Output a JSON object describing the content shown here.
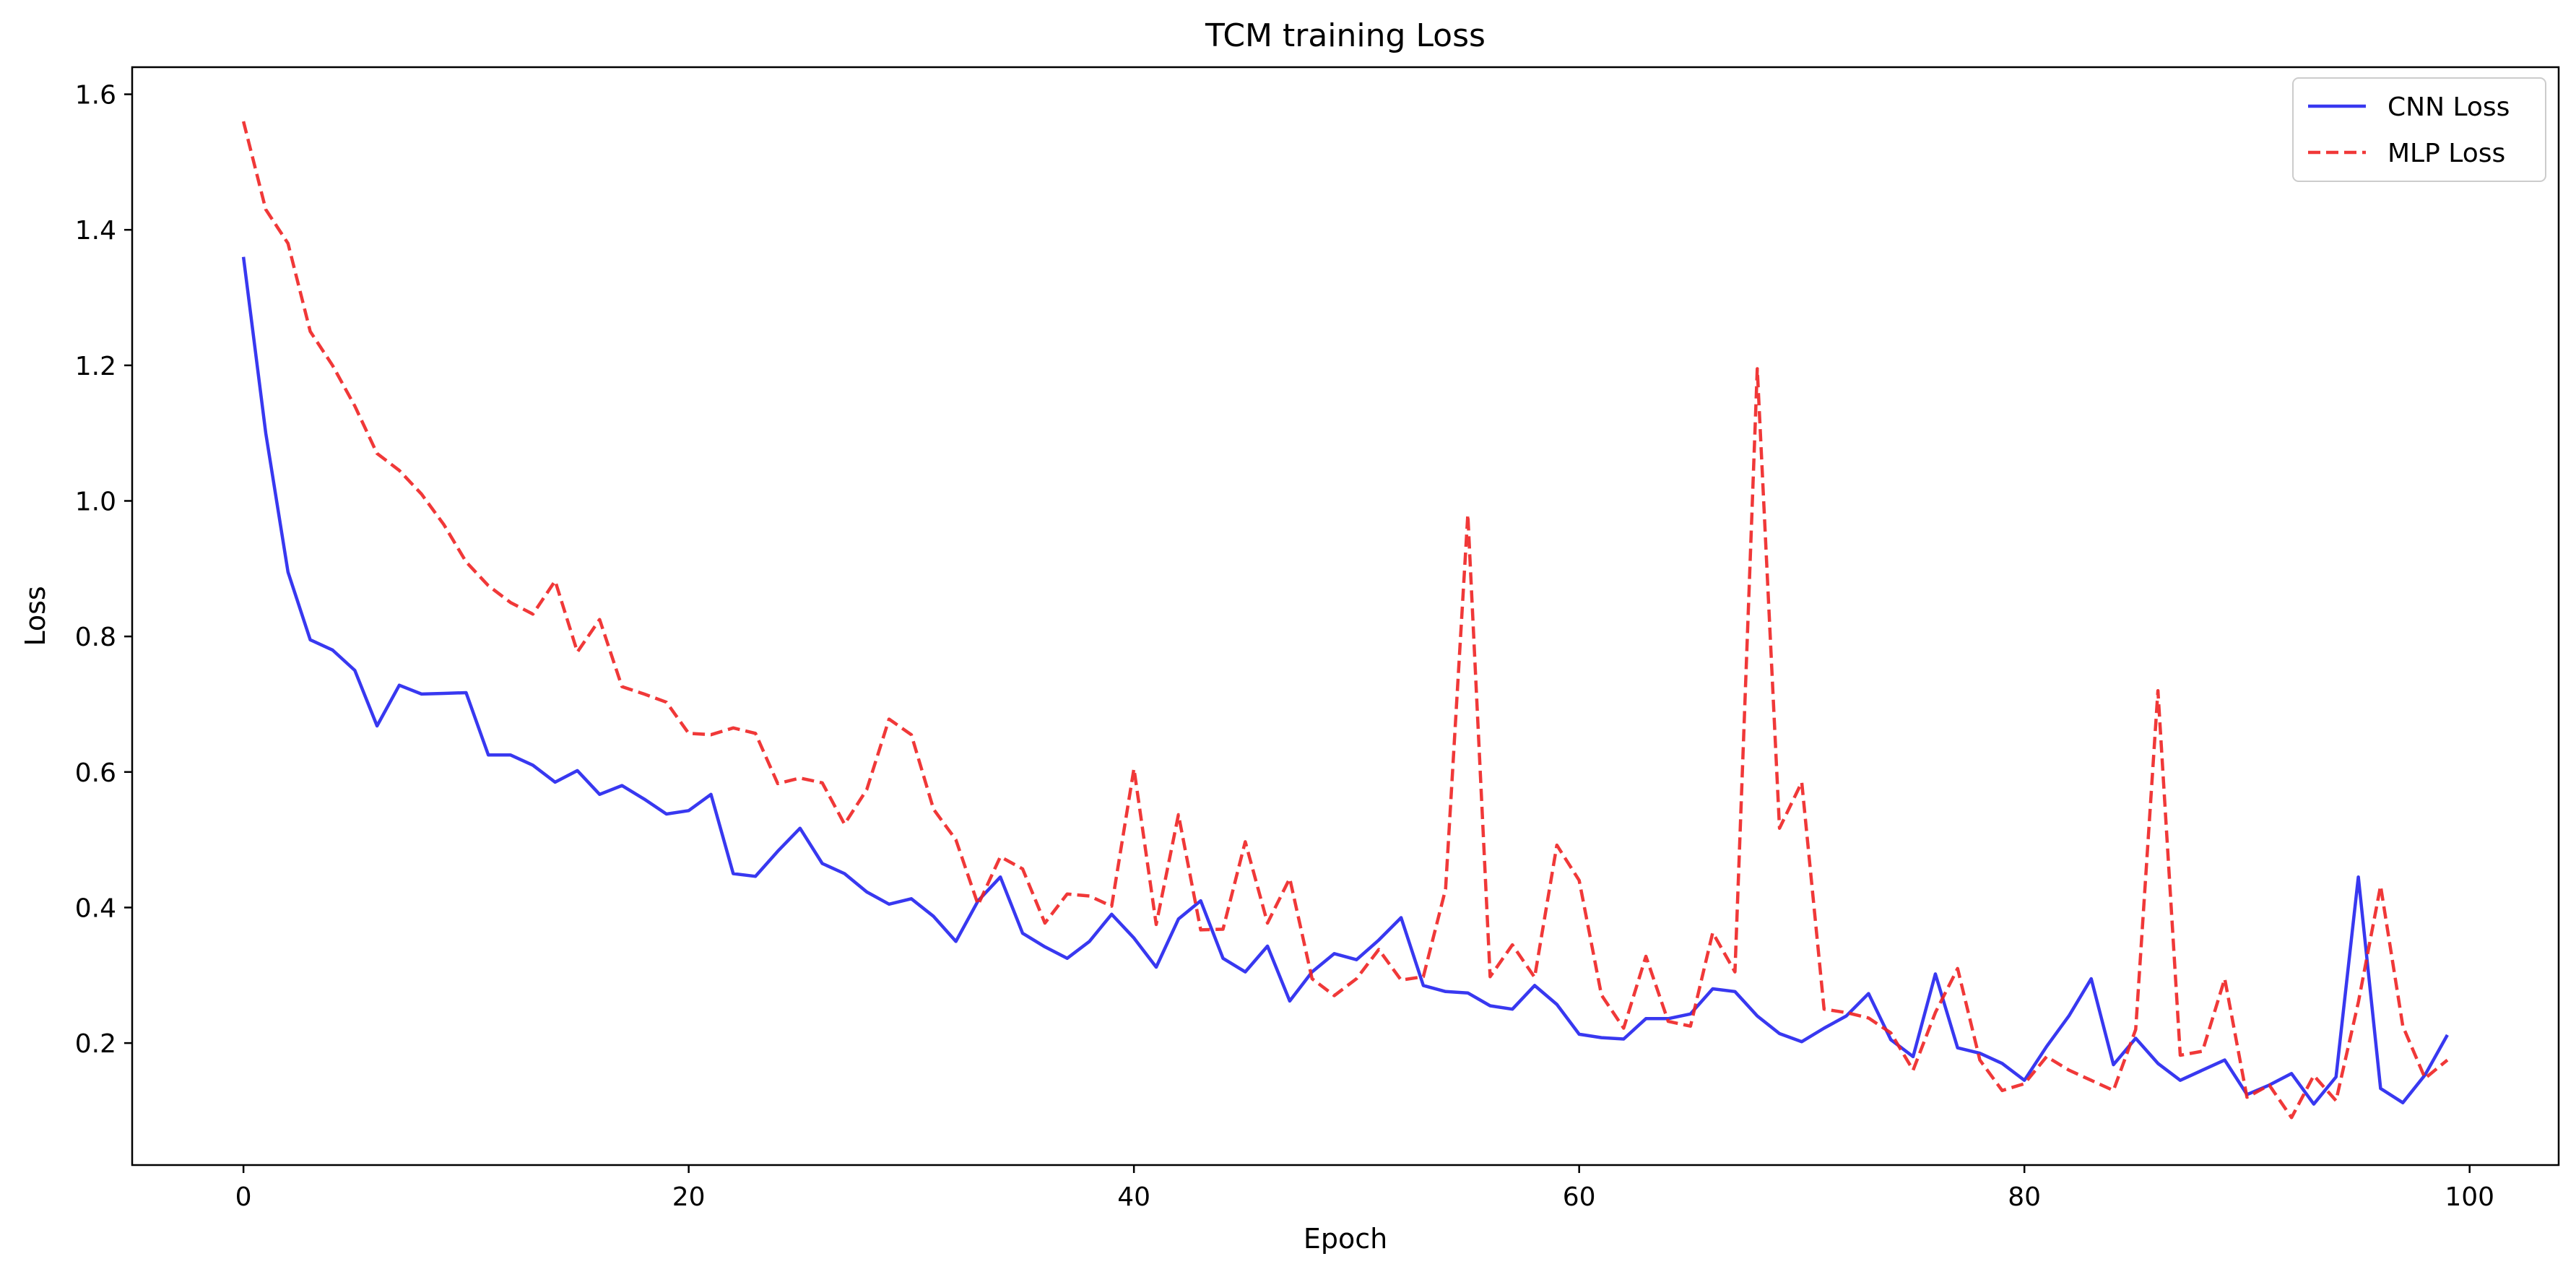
{
  "chart_data": {
    "type": "line",
    "title": "TCM training Loss",
    "xlabel": "Epoch",
    "ylabel": "Loss",
    "xlim": [
      -5,
      104
    ],
    "ylim": [
      0.02,
      1.64
    ],
    "xticks": [
      0,
      20,
      40,
      60,
      80,
      100
    ],
    "xtick_labels": [
      "0",
      "20",
      "40",
      "60",
      "80",
      "100"
    ],
    "yticks": [
      0.2,
      0.4,
      0.6,
      0.8,
      1.0,
      1.2,
      1.4,
      1.6
    ],
    "ytick_labels": [
      "0.2",
      "0.4",
      "0.6",
      "0.8",
      "1.0",
      "1.2",
      "1.4",
      "1.6"
    ],
    "grid": false,
    "legend_position": "top-right",
    "x": [
      0,
      1,
      2,
      3,
      4,
      5,
      6,
      7,
      8,
      9,
      10,
      11,
      12,
      13,
      14,
      15,
      16,
      17,
      18,
      19,
      20,
      21,
      22,
      23,
      24,
      25,
      26,
      27,
      28,
      29,
      30,
      31,
      32,
      33,
      34,
      35,
      36,
      37,
      38,
      39,
      40,
      41,
      42,
      43,
      44,
      45,
      46,
      47,
      48,
      49,
      50,
      51,
      52,
      53,
      54,
      55,
      56,
      57,
      58,
      59,
      60,
      61,
      62,
      63,
      64,
      65,
      66,
      67,
      68,
      69,
      70,
      71,
      72,
      73,
      74,
      75,
      76,
      77,
      78,
      79,
      80,
      81,
      82,
      83,
      84,
      85,
      86,
      87,
      88,
      89,
      90,
      91,
      92,
      93,
      94,
      95,
      96,
      97,
      98,
      99
    ],
    "series": [
      {
        "name": "CNN Loss",
        "color": "#2222ee",
        "style": "solid",
        "values": [
          1.36,
          1.1,
          0.895,
          0.795,
          0.78,
          0.75,
          0.668,
          0.728,
          0.715,
          0.716,
          0.717,
          0.625,
          0.625,
          0.61,
          0.585,
          0.602,
          0.567,
          0.58,
          0.56,
          0.538,
          0.543,
          0.567,
          0.45,
          0.446,
          0.483,
          0.517,
          0.465,
          0.45,
          0.423,
          0.405,
          0.413,
          0.387,
          0.35,
          0.41,
          0.445,
          0.362,
          0.342,
          0.325,
          0.35,
          0.39,
          0.355,
          0.312,
          0.383,
          0.41,
          0.325,
          0.305,
          0.343,
          0.262,
          0.305,
          0.332,
          0.323,
          0.352,
          0.385,
          0.285,
          0.276,
          0.274,
          0.255,
          0.25,
          0.285,
          0.257,
          0.213,
          0.208,
          0.206,
          0.236,
          0.236,
          0.243,
          0.28,
          0.276,
          0.24,
          0.214,
          0.202,
          0.222,
          0.24,
          0.273,
          0.205,
          0.18,
          0.302,
          0.193,
          0.185,
          0.17,
          0.145,
          0.195,
          0.24,
          0.295,
          0.168,
          0.207,
          0.17,
          0.145,
          0.16,
          0.175,
          0.124,
          0.138,
          0.155,
          0.11,
          0.15,
          0.445,
          0.133,
          0.112,
          0.153,
          0.212
        ]
      },
      {
        "name": "MLP Loss",
        "color": "#ee2222",
        "style": "dashed",
        "values": [
          1.56,
          1.43,
          1.38,
          1.25,
          1.2,
          1.14,
          1.07,
          1.045,
          1.01,
          0.965,
          0.91,
          0.875,
          0.85,
          0.833,
          0.882,
          0.777,
          0.825,
          0.726,
          0.715,
          0.703,
          0.657,
          0.655,
          0.665,
          0.657,
          0.583,
          0.591,
          0.584,
          0.523,
          0.574,
          0.678,
          0.655,
          0.545,
          0.5,
          0.404,
          0.475,
          0.457,
          0.377,
          0.42,
          0.417,
          0.402,
          0.605,
          0.375,
          0.537,
          0.367,
          0.368,
          0.497,
          0.377,
          0.443,
          0.295,
          0.27,
          0.295,
          0.338,
          0.293,
          0.298,
          0.427,
          0.98,
          0.298,
          0.345,
          0.297,
          0.492,
          0.44,
          0.271,
          0.222,
          0.328,
          0.232,
          0.225,
          0.363,
          0.305,
          1.195,
          0.517,
          0.585,
          0.25,
          0.245,
          0.237,
          0.215,
          0.16,
          0.245,
          0.31,
          0.175,
          0.13,
          0.14,
          0.18,
          0.16,
          0.145,
          0.13,
          0.22,
          0.72,
          0.182,
          0.188,
          0.295,
          0.12,
          0.138,
          0.09,
          0.152,
          0.115,
          0.26,
          0.432,
          0.225,
          0.148,
          0.175
        ]
      }
    ]
  }
}
